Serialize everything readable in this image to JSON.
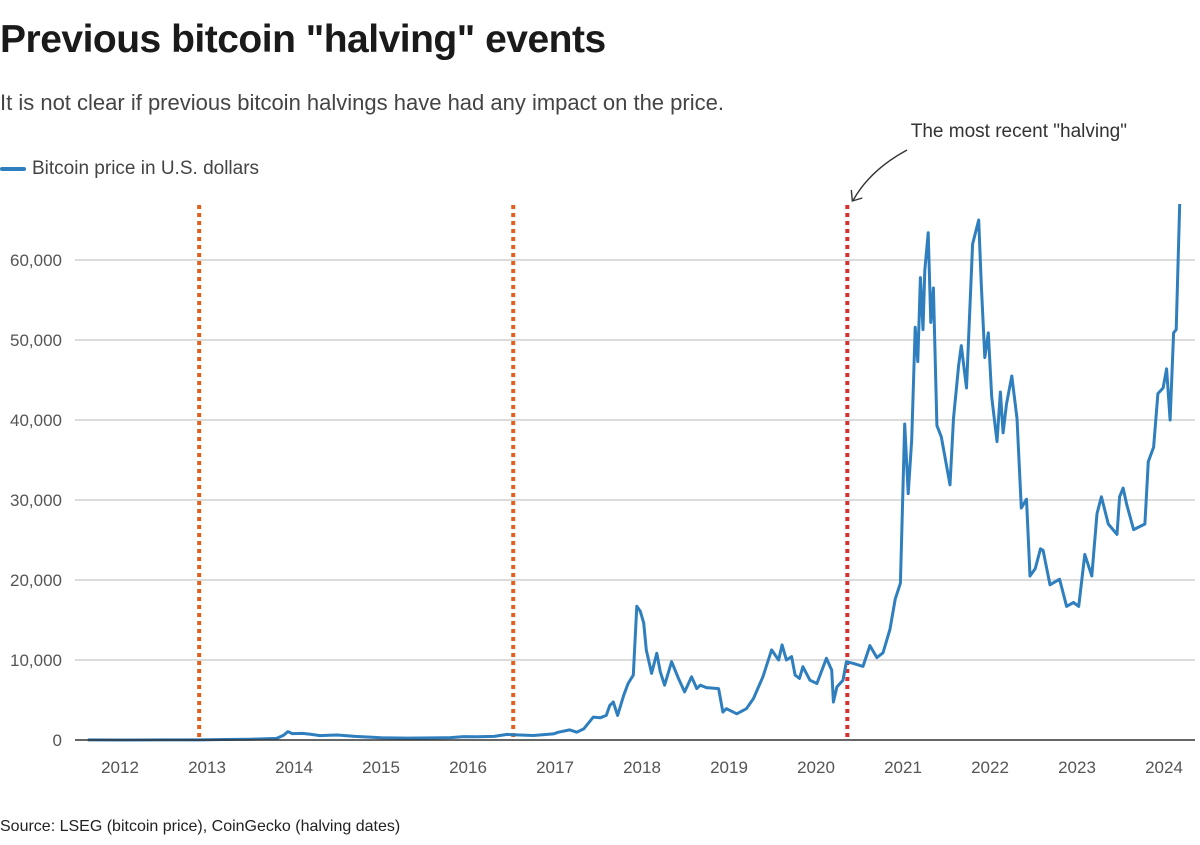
{
  "chart_data": {
    "type": "line",
    "title": "Previous bitcoin \"halving\" events",
    "subtitle": "It is not clear if previous bitcoin halvings have had any impact on the price.",
    "source": "Source: LSEG (bitcoin price), CoinGecko (halving dates)",
    "xlabel": "",
    "ylabel": "",
    "x_unit": "year",
    "xlim": [
      2011.6,
      2024.3
    ],
    "ylim": [
      0,
      67000
    ],
    "x_ticks": [
      "2012",
      "2013",
      "2014",
      "2015",
      "2016",
      "2017",
      "2018",
      "2019",
      "2020",
      "2021",
      "2022",
      "2023",
      "2024"
    ],
    "y_ticks": [
      "0",
      "10,000",
      "20,000",
      "30,000",
      "40,000",
      "50,000",
      "60,000"
    ],
    "y_tick_values": [
      0,
      10000,
      20000,
      30000,
      40000,
      50000,
      60000
    ],
    "grid": "horizontal",
    "legend_position": "top-left",
    "series": [
      {
        "name": "Bitcoin price in U.S. dollars",
        "color": "#2f7fbf",
        "points": [
          [
            2011.63,
            10
          ],
          [
            2012.0,
            6
          ],
          [
            2012.5,
            8
          ],
          [
            2012.91,
            12
          ],
          [
            2013.2,
            60
          ],
          [
            2013.5,
            100
          ],
          [
            2013.8,
            200
          ],
          [
            2013.88,
            600
          ],
          [
            2013.93,
            1050
          ],
          [
            2013.98,
            800
          ],
          [
            2014.1,
            820
          ],
          [
            2014.2,
            700
          ],
          [
            2014.3,
            550
          ],
          [
            2014.4,
            600
          ],
          [
            2014.5,
            620
          ],
          [
            2014.7,
            450
          ],
          [
            2014.9,
            350
          ],
          [
            2015.0,
            280
          ],
          [
            2015.3,
            240
          ],
          [
            2015.6,
            260
          ],
          [
            2015.8,
            300
          ],
          [
            2015.95,
            420
          ],
          [
            2016.1,
            400
          ],
          [
            2016.3,
            450
          ],
          [
            2016.45,
            700
          ],
          [
            2016.52,
            660
          ],
          [
            2016.75,
            560
          ],
          [
            2016.98,
            760
          ],
          [
            2017.04,
            970
          ],
          [
            2017.17,
            1260
          ],
          [
            2017.25,
            970
          ],
          [
            2017.33,
            1390
          ],
          [
            2017.44,
            2860
          ],
          [
            2017.52,
            2770
          ],
          [
            2017.59,
            3070
          ],
          [
            2017.63,
            4330
          ],
          [
            2017.67,
            4750
          ],
          [
            2017.72,
            3070
          ],
          [
            2017.79,
            5590
          ],
          [
            2017.84,
            7060
          ],
          [
            2017.9,
            8110
          ],
          [
            2017.94,
            16720
          ],
          [
            2017.98,
            16090
          ],
          [
            2018.02,
            14620
          ],
          [
            2018.05,
            11260
          ],
          [
            2018.11,
            8320
          ],
          [
            2018.17,
            10840
          ],
          [
            2018.21,
            8530
          ],
          [
            2018.26,
            6850
          ],
          [
            2018.34,
            9790
          ],
          [
            2018.42,
            7690
          ],
          [
            2018.49,
            6010
          ],
          [
            2018.57,
            7900
          ],
          [
            2018.63,
            6430
          ],
          [
            2018.67,
            6850
          ],
          [
            2018.74,
            6550
          ],
          [
            2018.88,
            6430
          ],
          [
            2018.93,
            3490
          ],
          [
            2018.97,
            3910
          ],
          [
            2019.09,
            3280
          ],
          [
            2019.2,
            3910
          ],
          [
            2019.28,
            5170
          ],
          [
            2019.39,
            7900
          ],
          [
            2019.49,
            11260
          ],
          [
            2019.57,
            10000
          ],
          [
            2019.61,
            11890
          ],
          [
            2019.66,
            10000
          ],
          [
            2019.72,
            10420
          ],
          [
            2019.76,
            8110
          ],
          [
            2019.81,
            7690
          ],
          [
            2019.85,
            9160
          ],
          [
            2019.93,
            7480
          ],
          [
            2020.01,
            7060
          ],
          [
            2020.12,
            10210
          ],
          [
            2020.18,
            8740
          ],
          [
            2020.2,
            4750
          ],
          [
            2020.24,
            6640
          ],
          [
            2020.31,
            7480
          ],
          [
            2020.35,
            9790
          ],
          [
            2020.43,
            9580
          ],
          [
            2020.54,
            9200
          ],
          [
            2020.62,
            11800
          ],
          [
            2020.7,
            10300
          ],
          [
            2020.77,
            10900
          ],
          [
            2020.85,
            13800
          ],
          [
            2020.91,
            17600
          ],
          [
            2020.97,
            19600
          ],
          [
            2020.98,
            23700
          ],
          [
            2021.02,
            39500
          ],
          [
            2021.06,
            30800
          ],
          [
            2021.1,
            37500
          ],
          [
            2021.14,
            51600
          ],
          [
            2021.17,
            47300
          ],
          [
            2021.2,
            57800
          ],
          [
            2021.23,
            51300
          ],
          [
            2021.25,
            58700
          ],
          [
            2021.29,
            63400
          ],
          [
            2021.32,
            52200
          ],
          [
            2021.35,
            56500
          ],
          [
            2021.39,
            39300
          ],
          [
            2021.44,
            37900
          ],
          [
            2021.54,
            31900
          ],
          [
            2021.58,
            40200
          ],
          [
            2021.64,
            46900
          ],
          [
            2021.67,
            49300
          ],
          [
            2021.73,
            44000
          ],
          [
            2021.8,
            62000
          ],
          [
            2021.87,
            65000
          ],
          [
            2021.9,
            56900
          ],
          [
            2021.94,
            47800
          ],
          [
            2021.98,
            50900
          ],
          [
            2022.02,
            42900
          ],
          [
            2022.08,
            37300
          ],
          [
            2022.12,
            43500
          ],
          [
            2022.15,
            38400
          ],
          [
            2022.19,
            42000
          ],
          [
            2022.25,
            45500
          ],
          [
            2022.31,
            40200
          ],
          [
            2022.36,
            29000
          ],
          [
            2022.42,
            30100
          ],
          [
            2022.46,
            20500
          ],
          [
            2022.52,
            21400
          ],
          [
            2022.58,
            23900
          ],
          [
            2022.61,
            23700
          ],
          [
            2022.69,
            19400
          ],
          [
            2022.8,
            20100
          ],
          [
            2022.88,
            16700
          ],
          [
            2022.96,
            17200
          ],
          [
            2023.02,
            16700
          ],
          [
            2023.09,
            23200
          ],
          [
            2023.17,
            20500
          ],
          [
            2023.23,
            28300
          ],
          [
            2023.28,
            30400
          ],
          [
            2023.36,
            27000
          ],
          [
            2023.46,
            25700
          ],
          [
            2023.49,
            30400
          ],
          [
            2023.53,
            31500
          ],
          [
            2023.57,
            29500
          ],
          [
            2023.65,
            26300
          ],
          [
            2023.78,
            27000
          ],
          [
            2023.82,
            34800
          ],
          [
            2023.88,
            36600
          ],
          [
            2023.93,
            43300
          ],
          [
            2023.99,
            44000
          ],
          [
            2024.03,
            46400
          ],
          [
            2024.07,
            40000
          ],
          [
            2024.11,
            50900
          ],
          [
            2024.14,
            51300
          ],
          [
            2024.18,
            67000
          ]
        ]
      }
    ],
    "halvings": [
      {
        "x": 2012.91,
        "color": "#e0601c"
      },
      {
        "x": 2016.52,
        "color": "#e0601c"
      },
      {
        "x": 2020.36,
        "color": "#d9302e",
        "annotation": "The most recent \"halving\""
      }
    ]
  }
}
